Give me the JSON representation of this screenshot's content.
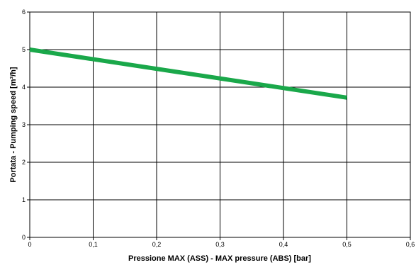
{
  "chart_data": {
    "type": "line",
    "title": "",
    "xlabel": "Pressione MAX  (ASS) - MAX pressure (ABS) [bar]",
    "ylabel": "Portata - Pumping speed [m³/h]",
    "xlim": [
      0,
      0.6
    ],
    "ylim": [
      0,
      6
    ],
    "xticks": [
      "0",
      "0,1",
      "0,2",
      "0,3",
      "0,4",
      "0,5",
      "0,6"
    ],
    "yticks": [
      "0",
      "1",
      "2",
      "3",
      "4",
      "5",
      "6"
    ],
    "grid": true,
    "legend": "none",
    "series": [
      {
        "color": "#1aa84a",
        "x": [
          0,
          0.5
        ],
        "y": [
          5.0,
          3.72
        ]
      }
    ]
  }
}
